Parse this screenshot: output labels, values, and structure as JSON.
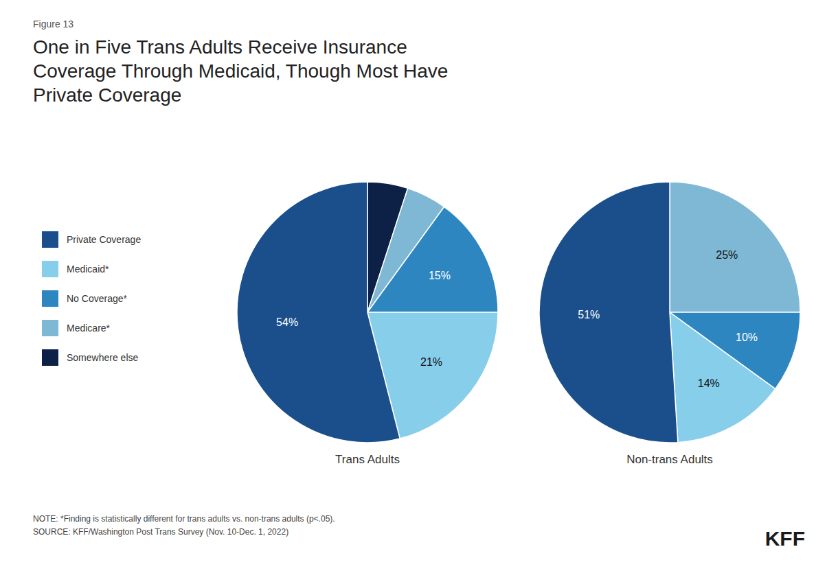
{
  "title": "One in Five Trans Adults Receive Insurance\nCoverage Through Medicaid, Though Most Have\nPrivate Coverage",
  "annotations": [
    "Figure 13",
    "NOTE: *Finding is statistically different for trans adults vs. non-trans adults (p<.05).\nSOURCE: KFF/Washington Post Trans Survey (Nov. 10-Dec. 1, 2022)",
    "KFF"
  ],
  "chart_data": [
    {
      "type": "pie",
      "title": "Trans Adults",
      "categories": [
        "Somewhere else",
        "Medicare*",
        "No Coverage*",
        "Medicaid*",
        "Private Coverage"
      ],
      "values": [
        5,
        5,
        15,
        21,
        54
      ],
      "value_labels": [
        null,
        null,
        "15%",
        "21%",
        "54%"
      ],
      "colors": [
        "#0d2046",
        "#7eb8d4",
        "#2e86c1",
        "#87ceeb",
        "#1a4f8c"
      ],
      "data_labels": true,
      "legend": "left"
    },
    {
      "type": "pie",
      "title": "Non-trans Adults",
      "categories": [
        "Medicare*",
        "No Coverage*",
        "Medicaid*",
        "Private Coverage"
      ],
      "values": [
        25,
        10,
        14,
        51
      ],
      "value_labels": [
        "25%",
        "10%",
        "14%",
        "51%"
      ],
      "colors": [
        "#7eb8d4",
        "#2e86c1",
        "#87ceeb",
        "#1a4f8c"
      ],
      "data_labels": true
    }
  ]
}
